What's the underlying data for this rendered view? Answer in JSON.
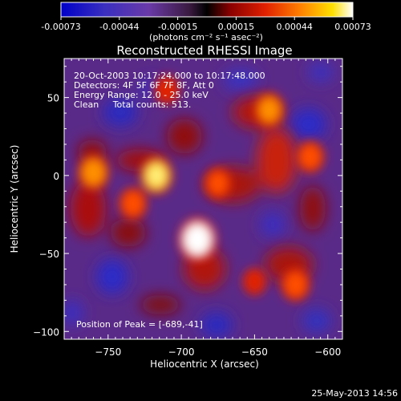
{
  "chart_data": {
    "type": "heatmap",
    "title": "Reconstructed RHESSI Image",
    "xlabel": "Heliocentric X (arcsec)",
    "ylabel": "Heliocentric Y (arcsec)",
    "xlim": [
      -780,
      -590
    ],
    "ylim": [
      -105,
      75
    ],
    "x_ticks": [
      -750,
      -700,
      -650,
      -600
    ],
    "y_ticks": [
      50,
      0,
      -50,
      -100
    ],
    "colorbar": {
      "min": -0.00073,
      "max": 0.00073,
      "ticks": [
        "-0.00073",
        "-0.00044",
        "-0.00015",
        "0.00015",
        "0.00044",
        "0.00073"
      ],
      "unit_label": "(photons cm⁻² s⁻¹ asec⁻²)",
      "colors": [
        "#0000c8",
        "#3a2fbf",
        "#6a3aa8",
        "#3a1a40",
        "#000000",
        "#8a0000",
        "#e02000",
        "#ff8000",
        "#ffe000",
        "#ffffff"
      ]
    },
    "annotations": [
      "20-Oct-2003 10:17:24.000 to 10:17:48.000",
      "Detectors: 4F 5F 6F 7F 8F, Att 0",
      "Energy Range: 12.0 - 25.0 keV",
      "Clean     Total counts: 513."
    ],
    "peak_label": "Position of Peak = [-689,-41]",
    "peak": {
      "x": -689,
      "y": -41
    },
    "sources": [
      {
        "x": -689,
        "y": -41,
        "value": 0.00073
      },
      {
        "x": -717,
        "y": 0,
        "value": 0.00055
      },
      {
        "x": -760,
        "y": 2,
        "value": 0.0005
      },
      {
        "x": -640,
        "y": 42,
        "value": 0.00045
      },
      {
        "x": -612,
        "y": 12,
        "value": 0.0004
      },
      {
        "x": -622,
        "y": -70,
        "value": 0.00042
      },
      {
        "x": -650,
        "y": -68,
        "value": 0.00025
      },
      {
        "x": -733,
        "y": -18,
        "value": 0.0004
      },
      {
        "x": -675,
        "y": -5,
        "value": 0.00035
      },
      {
        "x": -710,
        "y": 55,
        "value": 0.0003
      }
    ],
    "timestamp": "25-May-2013 14:56"
  }
}
